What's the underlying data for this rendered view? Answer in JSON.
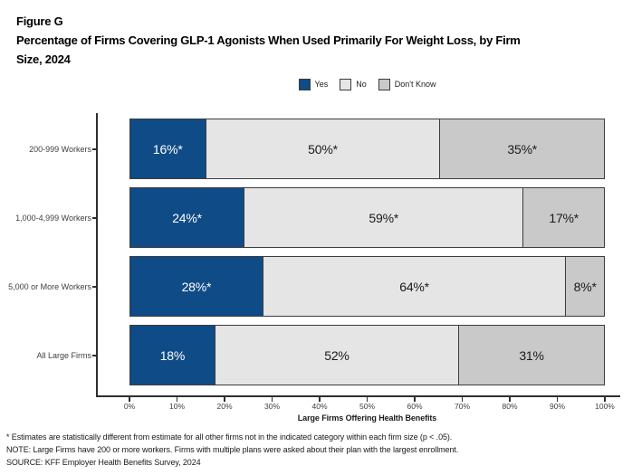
{
  "figure": {
    "label": "Figure G",
    "title_lines": [
      "Percentage of Firms Covering GLP-1 Agonists When Used Primarily For Weight Loss, by Firm",
      "Size, 2024"
    ]
  },
  "legend": {
    "items": [
      {
        "label": "Yes",
        "color": "#0f4c87"
      },
      {
        "label": "No",
        "color": "#e5e5e5"
      },
      {
        "label": "Don't Know",
        "color": "#c9c9c9"
      }
    ]
  },
  "chart_data": {
    "type": "bar",
    "orientation": "horizontal",
    "stacked": true,
    "categories": [
      "200-999 Workers",
      "1,000-4,999 Workers",
      "5,000 or More Workers",
      "All Large Firms"
    ],
    "series": [
      {
        "name": "Yes",
        "color": "#0f4c87",
        "label_color": "#ffffff",
        "values": [
          16,
          24,
          28,
          18
        ],
        "labels": [
          "16%*",
          "24%*",
          "28%*",
          "18%"
        ]
      },
      {
        "name": "No",
        "color": "#e5e5e5",
        "label_color": "#1a1a1a",
        "values": [
          50,
          59,
          64,
          52
        ],
        "labels": [
          "50%*",
          "59%*",
          "64%*",
          "52%"
        ]
      },
      {
        "name": "Don't Know",
        "color": "#c9c9c9",
        "label_color": "#1a1a1a",
        "values": [
          35,
          17,
          8,
          31
        ],
        "labels": [
          "35%*",
          "17%*",
          "8%*",
          "31%"
        ]
      }
    ],
    "xlabel": "Large Firms Offering Health Benefits",
    "x_ticks": [
      "0%",
      "10%",
      "20%",
      "30%",
      "40%",
      "50%",
      "60%",
      "70%",
      "80%",
      "90%",
      "100%"
    ],
    "xlim": [
      0,
      100
    ],
    "grid": false,
    "legend_position": "top-center"
  },
  "footnotes": [
    "* Estimates are statistically different from estimate for all other firms not in the indicated category within each firm size (p < .05).",
    "NOTE: Large Firms have 200 or more workers.  Firms with multiple plans were asked about their plan with the largest enrollment.",
    "SOURCE: KFF Employer Health Benefits Survey, 2024"
  ]
}
